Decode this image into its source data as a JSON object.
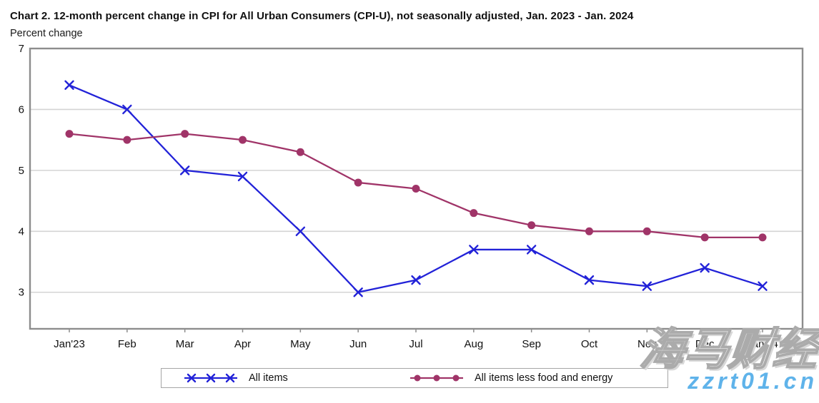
{
  "title": "Chart 2. 12-month percent change in CPI for All Urban Consumers (CPI-U), not seasonally adjusted, Jan. 2023 - Jan. 2024",
  "subtitle": "Percent change",
  "chart_data": {
    "type": "line",
    "categories": [
      "Jan'23",
      "Feb",
      "Mar",
      "Apr",
      "May",
      "Jun",
      "Jul",
      "Aug",
      "Sep",
      "Oct",
      "Nov",
      "Dec",
      "Jan'24"
    ],
    "series": [
      {
        "name": "All items",
        "marker": "x",
        "color": "#2222D8",
        "values": [
          6.4,
          6.0,
          5.0,
          4.9,
          4.0,
          3.0,
          3.2,
          3.7,
          3.7,
          3.2,
          3.1,
          3.4,
          3.1
        ]
      },
      {
        "name": "All items less food and energy",
        "marker": "circle",
        "color": "#A03468",
        "values": [
          5.6,
          5.5,
          5.6,
          5.5,
          5.3,
          4.8,
          4.7,
          4.3,
          4.1,
          4.0,
          4.0,
          3.9,
          3.9
        ]
      }
    ],
    "title": "Chart 2. 12-month percent change in CPI for All Urban Consumers (CPI-U), not seasonally adjusted, Jan. 2023 - Jan. 2024",
    "xlabel": "",
    "ylabel": "Percent change",
    "y_ticks": [
      7,
      6,
      5,
      4,
      3
    ],
    "ylim": [
      2.4,
      7
    ],
    "grid": true,
    "legend_position": "bottom"
  },
  "legend": {
    "items": [
      {
        "label": "All items"
      },
      {
        "label": "All items less food and energy"
      }
    ]
  },
  "watermark": {
    "cjk_text": "海马财经",
    "url_text": "zzrt01.cn",
    "url_color": "#5FB3EA"
  },
  "colors": {
    "series_all_items": "#2222D8",
    "series_core": "#A03468",
    "plot_border": "#8D8D8D",
    "gridline": "#D4D4D4",
    "axis_text": "#111111"
  }
}
